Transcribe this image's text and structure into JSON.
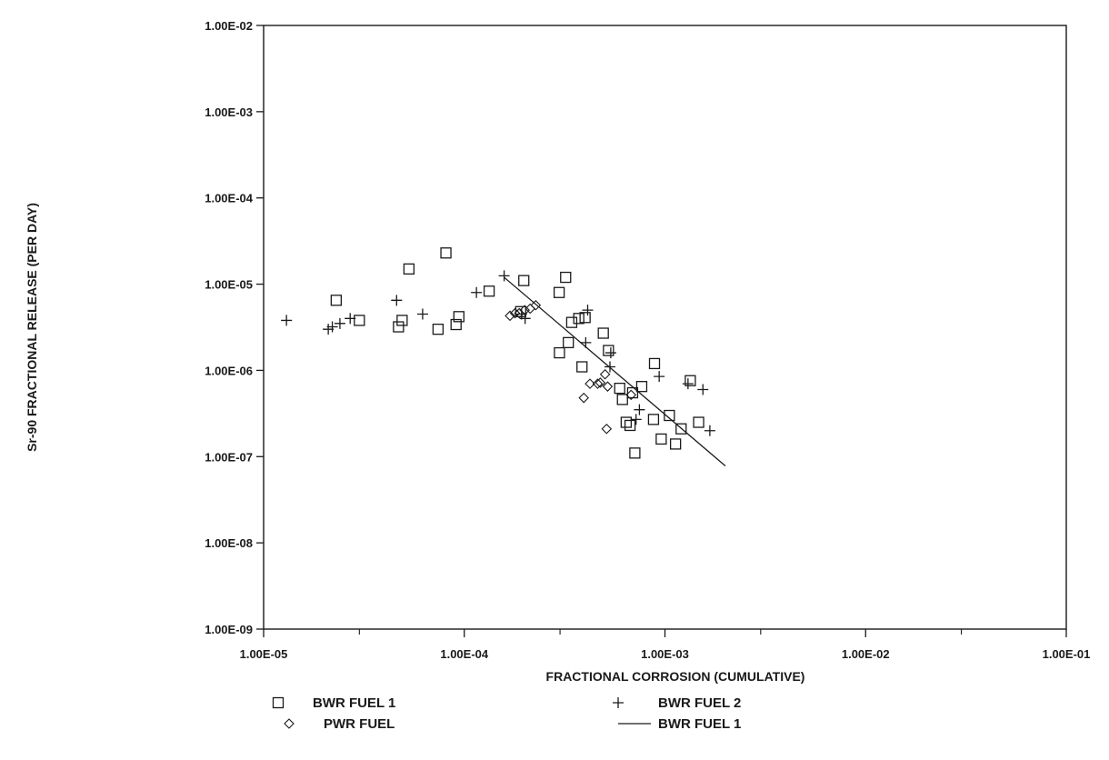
{
  "chart_data": {
    "type": "scatter",
    "title": "",
    "xlabel": "FRACTIONAL CORROSION (CUMULATIVE)",
    "ylabel": "Sr-90 FRACTIONAL RELEASE (PER DAY)",
    "xscale": "log",
    "yscale": "log",
    "xlim": [
      1e-05,
      0.1
    ],
    "ylim": [
      1e-09,
      0.01
    ],
    "x_tick_labels": [
      "1.00E-05",
      "1.00E-04",
      "1.00E-03",
      "1.00E-02",
      "1.00E-01"
    ],
    "y_tick_labels": [
      "1.00E-09",
      "1.00E-08",
      "1.00E-07",
      "1.00E-06",
      "1.00E-05",
      "1.00E-04",
      "1.00E-03",
      "1.00E-02"
    ],
    "x_tick_values": [
      1e-05,
      0.0001,
      0.001,
      0.01,
      0.1
    ],
    "y_tick_values": [
      1e-09,
      1e-08,
      1e-07,
      1e-06,
      1e-05,
      0.0001,
      0.001,
      0.01
    ],
    "x_minor_ticks": [
      3e-05,
      0.0003,
      0.003,
      0.03
    ],
    "grid": false,
    "legend_position": "bottom",
    "series": [
      {
        "name": "BWR FUEL 1",
        "marker": "square",
        "points": [
          [
            2.3e-05,
            6.5e-06
          ],
          [
            3e-05,
            3.8e-06
          ],
          [
            4.7e-05,
            3.2e-06
          ],
          [
            4.9e-05,
            3.8e-06
          ],
          [
            5.3e-05,
            1.5e-05
          ],
          [
            7.4e-05,
            3e-06
          ],
          [
            8.1e-05,
            2.3e-05
          ],
          [
            9.1e-05,
            3.4e-06
          ],
          [
            9.4e-05,
            4.2e-06
          ],
          [
            0.000133,
            8.3e-06
          ],
          [
            0.000198,
            1.1e-05
          ],
          [
            0.000191,
            4.8e-06
          ],
          [
            0.000297,
            8e-06
          ],
          [
            0.00032,
            1.2e-05
          ],
          [
            0.000298,
            1.6e-06
          ],
          [
            0.00033,
            2.1e-06
          ],
          [
            0.000343,
            3.6e-06
          ],
          [
            0.000372,
            4e-06
          ],
          [
            0.0004,
            4.1e-06
          ],
          [
            0.000386,
            1.1e-06
          ],
          [
            0.000493,
            2.7e-06
          ],
          [
            0.000523,
            1.7e-06
          ],
          [
            0.000595,
            6.2e-07
          ],
          [
            0.000614,
            4.6e-07
          ],
          [
            0.000641,
            2.5e-07
          ],
          [
            0.00067,
            2.3e-07
          ],
          [
            0.000708,
            1.1e-07
          ],
          [
            0.00069,
            5.5e-07
          ],
          [
            0.000766,
            6.5e-07
          ],
          [
            0.000877,
            2.7e-07
          ],
          [
            0.000887,
            1.2e-06
          ],
          [
            0.000958,
            1.6e-07
          ],
          [
            0.001052,
            3e-07
          ],
          [
            0.001129,
            1.4e-07
          ],
          [
            0.001204,
            2.1e-07
          ],
          [
            0.001338,
            7.6e-07
          ],
          [
            0.001472,
            2.5e-07
          ]
        ]
      },
      {
        "name": "BWR FUEL 2",
        "marker": "plus",
        "points": [
          [
            1.3e-05,
            3.8e-06
          ],
          [
            2.1e-05,
            3e-06
          ],
          [
            2.2e-05,
            3.2e-06
          ],
          [
            2.4e-05,
            3.5e-06
          ],
          [
            2.7e-05,
            4e-06
          ],
          [
            4.6e-05,
            6.5e-06
          ],
          [
            6.2e-05,
            4.5e-06
          ],
          [
            0.000115,
            8e-06
          ],
          [
            0.000158,
            1.25e-05
          ],
          [
            0.000193,
            4.5e-06
          ],
          [
            0.000201,
            4e-06
          ],
          [
            0.000412,
            5e-06
          ],
          [
            0.000403,
            2.1e-06
          ],
          [
            0.000537,
            1.6e-06
          ],
          [
            0.000532,
            1.1e-06
          ],
          [
            0.000718,
            2.7e-07
          ],
          [
            0.000746,
            3.5e-07
          ],
          [
            0.000936,
            8.5e-07
          ],
          [
            0.001303,
            7e-07
          ],
          [
            0.001546,
            6e-07
          ],
          [
            0.001674,
            2e-07
          ]
        ]
      },
      {
        "name": "PWR FUEL",
        "marker": "diamond",
        "points": [
          [
            0.000169,
            4.3e-06
          ],
          [
            0.000179,
            4.6e-06
          ],
          [
            0.000188,
            4.6e-06
          ],
          [
            0.0002,
            5e-06
          ],
          [
            0.000213,
            5.2e-06
          ],
          [
            0.000227,
            5.7e-06
          ],
          [
            0.000394,
            4.8e-07
          ],
          [
            0.000423,
            7e-07
          ],
          [
            0.000462,
            7e-07
          ],
          [
            0.000476,
            7.2e-07
          ],
          [
            0.000503,
            9e-07
          ],
          [
            0.000518,
            6.5e-07
          ],
          [
            0.000512,
            2.1e-07
          ],
          [
            0.000678,
            5.2e-07
          ]
        ]
      },
      {
        "name": "BWR FUEL 1",
        "marker": "line",
        "points": [
          [
            0.000158,
            1.2e-05
          ],
          [
            0.002,
            7.8e-08
          ]
        ]
      }
    ]
  },
  "legend": [
    {
      "symbol": "square",
      "label": "BWR FUEL 1"
    },
    {
      "symbol": "plus",
      "label": "BWR FUEL 2"
    },
    {
      "symbol": "diamond",
      "label": "PWR FUEL"
    },
    {
      "symbol": "line",
      "label": "BWR FUEL 1"
    }
  ]
}
